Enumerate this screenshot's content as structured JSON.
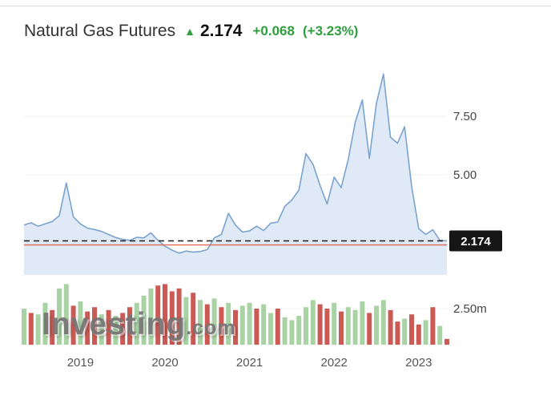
{
  "header": {
    "title": "Natural Gas Futures",
    "arrow_glyph": "▲",
    "last_price": "2.174",
    "change": "+0.068",
    "change_percent": "(+3.23%)",
    "accent_color": "#2f9e3f"
  },
  "watermark": {
    "brand": "Investing",
    "suffix": ".com"
  },
  "chart_data": {
    "type": "area",
    "title": "Natural Gas Futures price with volume",
    "x_axis": {
      "start": "2018-05",
      "interval": "monthly",
      "tick_labels": [
        "2019",
        "2020",
        "2021",
        "2022",
        "2023"
      ],
      "tick_indices": [
        8,
        20,
        32,
        44,
        56
      ]
    },
    "y_axis": {
      "side": "right",
      "ticks": [
        "7.50",
        "5.00"
      ],
      "tick_values": [
        7.5,
        5.0
      ],
      "range": [
        0.8,
        9.6
      ]
    },
    "prices": [
      2.85,
      2.95,
      2.8,
      2.9,
      3.0,
      3.25,
      4.65,
      3.2,
      2.9,
      2.72,
      2.66,
      2.58,
      2.45,
      2.32,
      2.24,
      2.2,
      2.33,
      2.3,
      2.52,
      2.2,
      1.95,
      1.78,
      1.65,
      1.74,
      1.7,
      1.72,
      1.8,
      2.3,
      2.45,
      3.35,
      2.85,
      2.55,
      2.6,
      2.8,
      2.62,
      2.93,
      2.98,
      3.65,
      3.92,
      4.35,
      5.9,
      5.45,
      4.55,
      3.75,
      4.9,
      4.45,
      5.65,
      7.25,
      8.2,
      5.7,
      8.05,
      9.3,
      6.6,
      6.35,
      7.05,
      4.5,
      2.7,
      2.45,
      2.65,
      2.2,
      2.174
    ],
    "last_price": 2.174,
    "price_label": "2.174",
    "red_line_price": 2.0,
    "volume": {
      "values": [
        2.5,
        2.2,
        2.1,
        2.9,
        2.4,
        3.9,
        4.2,
        2.7,
        3.0,
        2.3,
        2.6,
        2.1,
        2.4,
        2.0,
        2.2,
        2.6,
        2.9,
        3.4,
        3.9,
        4.1,
        4.2,
        3.7,
        3.9,
        3.3,
        3.6,
        3.1,
        2.8,
        3.2,
        2.6,
        2.9,
        2.4,
        2.7,
        2.9,
        2.5,
        2.8,
        2.2,
        2.5,
        1.9,
        1.7,
        2.0,
        2.6,
        3.1,
        2.8,
        2.5,
        2.9,
        2.3,
        2.6,
        2.4,
        3.0,
        2.2,
        2.7,
        3.1,
        2.4,
        1.6,
        1.8,
        2.1,
        1.4,
        1.7,
        2.6,
        1.3,
        0.4
      ],
      "direction": [
        "up",
        "down",
        "up",
        "up",
        "down",
        "up",
        "up",
        "down",
        "up",
        "down",
        "down",
        "up",
        "down",
        "up",
        "down",
        "down",
        "up",
        "up",
        "up",
        "down",
        "down",
        "down",
        "down",
        "up",
        "down",
        "up",
        "down",
        "up",
        "down",
        "up",
        "down",
        "up",
        "up",
        "down",
        "up",
        "up",
        "down",
        "up",
        "up",
        "up",
        "up",
        "up",
        "down",
        "down",
        "up",
        "down",
        "up",
        "up",
        "up",
        "down",
        "up",
        "up",
        "down",
        "down",
        "up",
        "down",
        "down",
        "up",
        "down",
        "up",
        "down"
      ],
      "axis_tick_label": "2.50m",
      "axis_tick_value": 2.5
    },
    "colors": {
      "area_fill": "#dde8f5",
      "area_line": "#7ba3cf",
      "volume_up": "#a9d3a4",
      "volume_down": "#cb5a54",
      "dashed_line": "#1a1a1a",
      "reference_line": "#e0675e",
      "tag_bg": "#161616",
      "tag_text": "#ffffff",
      "axis_text": "#444444",
      "year_text": "#555555"
    },
    "grid": "minimal",
    "legend": "none"
  }
}
